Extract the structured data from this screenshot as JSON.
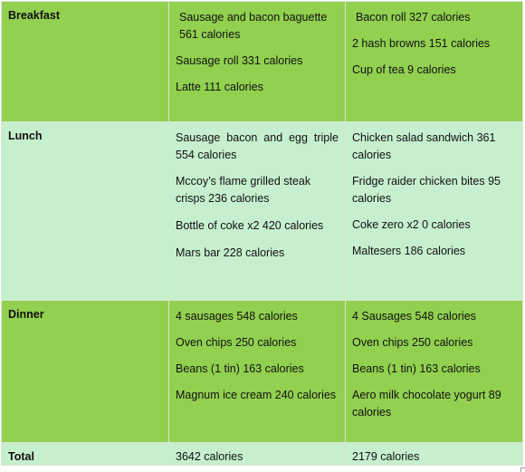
{
  "rows": [
    {
      "label": "Breakfast",
      "col1": [
        "Sausage and bacon baguette 561 calories",
        "Sausage roll 331 calories",
        "Latte 111 calories"
      ],
      "col2": [
        "Bacon roll 327 calories",
        "2 hash browns 151 calories",
        "Cup of tea 9 calories"
      ]
    },
    {
      "label": "Lunch",
      "col1": [
        "Sausage bacon and egg triple 554 calories",
        "Mccoy’s flame grilled steak crisps 236 calories",
        "Bottle of coke x2 420 calories",
        "Mars bar 228 calories"
      ],
      "col2": [
        "Chicken salad sandwich 361 calories",
        "Fridge raider chicken bites 95 calories",
        "Coke zero x2 0 calories",
        "Maltesers 186 calories"
      ]
    },
    {
      "label": "Dinner",
      "col1": [
        "4 sausages 548 calories",
        "Oven chips 250 calories",
        "Beans (1 tin) 163 calories",
        "Magnum ice cream 240 calories"
      ],
      "col2": [
        "4 Sausages 548 calories",
        "Oven chips 250 calories",
        "Beans (1 tin) 163 calories",
        "Aero milk chocolate yogurt 89 calories"
      ]
    }
  ],
  "total": {
    "label": "Total",
    "col1": "3642 calories",
    "col2": "2179 calories"
  },
  "colors": {
    "dark_green": "#92d050",
    "light_green": "#c6efce"
  }
}
